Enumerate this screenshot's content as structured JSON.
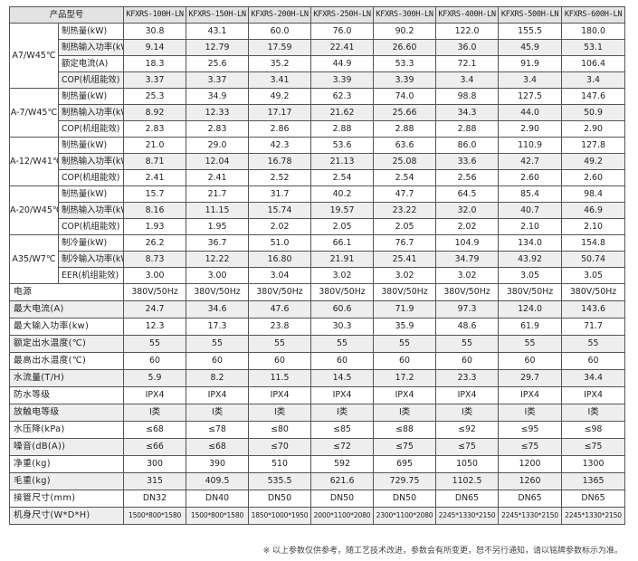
{
  "table": {
    "header_label": "产品型号",
    "models": [
      "KFXRS-100H-LN",
      "KFXRS-150H-LN",
      "KFXRS-200H-LN",
      "KFXRS-250H-LN",
      "KFXRS-300H-LN",
      "KFXRS-400H-LN",
      "KFXRS-500H-LN",
      "KFXRS-600H-LN"
    ],
    "groups": [
      {
        "label": "A7/W45℃",
        "rows": [
          {
            "param": "制热量(kW)",
            "values": [
              "30.8",
              "43.1",
              "60.0",
              "76.0",
              "90.2",
              "122.0",
              "155.5",
              "180.0"
            ]
          },
          {
            "param": "制热输入功率(kW)",
            "values": [
              "9.14",
              "12.79",
              "17.59",
              "22.41",
              "26.60",
              "36.0",
              "45.9",
              "53.1"
            ]
          },
          {
            "param": "额定电流(A)",
            "values": [
              "18.3",
              "25.6",
              "35.2",
              "44.9",
              "53.3",
              "72.1",
              "91.9",
              "106.4"
            ]
          },
          {
            "param": "COP(机组能效)",
            "values": [
              "3.37",
              "3.37",
              "3.41",
              "3.39",
              "3.39",
              "3.4",
              "3.4",
              "3.4"
            ]
          }
        ]
      },
      {
        "label": "A-7/W45℃",
        "rows": [
          {
            "param": "制热量(kW)",
            "values": [
              "25.3",
              "34.9",
              "49.2",
              "62.3",
              "74.0",
              "98.8",
              "127.5",
              "147.6"
            ]
          },
          {
            "param": "制热输入功率(kW)",
            "values": [
              "8.92",
              "12.33",
              "17.17",
              "21.62",
              "25.66",
              "34.3",
              "44.0",
              "50.9"
            ]
          },
          {
            "param": "COP(机组能效)",
            "values": [
              "2.83",
              "2.83",
              "2.86",
              "2.88",
              "2.88",
              "2.88",
              "2.90",
              "2.90"
            ]
          }
        ]
      },
      {
        "label": "A-12/W41℃",
        "rows": [
          {
            "param": "制热量(kW)",
            "values": [
              "21.0",
              "29.0",
              "42.3",
              "53.6",
              "63.6",
              "86.0",
              "110.9",
              "127.8"
            ]
          },
          {
            "param": "制热输入功率(kW)",
            "values": [
              "8.71",
              "12.04",
              "16.78",
              "21.13",
              "25.08",
              "33.6",
              "42.7",
              "49.2"
            ]
          },
          {
            "param": "COP(机组能效)",
            "values": [
              "2.41",
              "2.41",
              "2.52",
              "2.54",
              "2.54",
              "2.56",
              "2.60",
              "2.60"
            ]
          }
        ]
      },
      {
        "label": "A-20/W45℃",
        "rows": [
          {
            "param": "制热量(kW)",
            "values": [
              "15.7",
              "21.7",
              "31.7",
              "40.2",
              "47.7",
              "64.5",
              "85.4",
              "98.4"
            ]
          },
          {
            "param": "制热输入功率(kW)",
            "values": [
              "8.16",
              "11.15",
              "15.74",
              "19.57",
              "23.22",
              "32.0",
              "40.7",
              "46.9"
            ]
          },
          {
            "param": "COP(机组能效)",
            "values": [
              "1.93",
              "1.95",
              "2.02",
              "2.05",
              "2.05",
              "2.02",
              "2.10",
              "2.10"
            ]
          }
        ]
      },
      {
        "label": "A35/W7℃",
        "rows": [
          {
            "param": "制冷量(kW)",
            "values": [
              "26.2",
              "36.7",
              "51.0",
              "66.1",
              "76.7",
              "104.9",
              "134.0",
              "154.8"
            ]
          },
          {
            "param": "制冷输入功率(kW)",
            "values": [
              "8.73",
              "12.22",
              "16.80",
              "21.91",
              "25.41",
              "34.79",
              "43.92",
              "50.74"
            ]
          },
          {
            "param": "EER(机组能效)",
            "values": [
              "3.00",
              "3.00",
              "3.04",
              "3.02",
              "3.02",
              "3.02",
              "3.05",
              "3.05"
            ]
          }
        ]
      }
    ],
    "main_rows": [
      {
        "label": "电源",
        "values": [
          "380V/50Hz",
          "380V/50Hz",
          "380V/50Hz",
          "380V/50Hz",
          "380V/50Hz",
          "380V/50Hz",
          "380V/50Hz",
          "380V/50Hz"
        ]
      },
      {
        "label": "最大电流(A)",
        "values": [
          "24.7",
          "34.6",
          "47.6",
          "60.6",
          "71.9",
          "97.3",
          "124.0",
          "143.6"
        ]
      },
      {
        "label": "最大输入功率(kw)",
        "values": [
          "12.3",
          "17.3",
          "23.8",
          "30.3",
          "35.9",
          "48.6",
          "61.9",
          "71.7"
        ]
      },
      {
        "label": "额定出水温度(℃)",
        "values": [
          "55",
          "55",
          "55",
          "55",
          "55",
          "55",
          "55",
          "55"
        ]
      },
      {
        "label": "最高出水温度(℃)",
        "values": [
          "60",
          "60",
          "60",
          "60",
          "60",
          "60",
          "60",
          "60"
        ]
      },
      {
        "label": "水流量(T/H)",
        "values": [
          "5.9",
          "8.2",
          "11.5",
          "14.5",
          "17.2",
          "23.3",
          "29.7",
          "34.4"
        ]
      },
      {
        "label": "防水等级",
        "values": [
          "IPX4",
          "IPX4",
          "IPX4",
          "IPX4",
          "IPX4",
          "IPX4",
          "IPX4",
          "IPX4"
        ]
      },
      {
        "label": "放触电等级",
        "values": [
          "I类",
          "I类",
          "I类",
          "I类",
          "I类",
          "I类",
          "I类",
          "I类"
        ]
      },
      {
        "label": "水压降(kPa)",
        "values": [
          "≤68",
          "≤78",
          "≤80",
          "≤85",
          "≤88",
          "≤92",
          "≤95",
          "≤98"
        ]
      },
      {
        "label": "噪音(dB(A))",
        "values": [
          "≤66",
          "≤68",
          "≤70",
          "≤72",
          "≤75",
          "≤75",
          "≤75",
          "≤75"
        ]
      },
      {
        "label": "净重(kg)",
        "values": [
          "300",
          "390",
          "510",
          "592",
          "695",
          "1050",
          "1200",
          "1300"
        ]
      },
      {
        "label": "毛重(kg)",
        "values": [
          "315",
          "409.5",
          "535.5",
          "621.6",
          "729.75",
          "1102.5",
          "1260",
          "1365"
        ]
      },
      {
        "label": "接管尺寸(mm)",
        "values": [
          "DN32",
          "DN40",
          "DN50",
          "DN50",
          "DN50",
          "DN65",
          "DN65",
          "DN65"
        ]
      },
      {
        "label": "机身尺寸(W*D*H)",
        "values": [
          "1500*800*1580",
          "1500*800*1580",
          "1850*1000*1950",
          "2000*1100*2080",
          "2300*1100*2080",
          "2245*1330*2150",
          "2245*1330*2150",
          "2245*1330*2150"
        ]
      }
    ]
  },
  "footnote": "※ 以上参数仅供参考，随工艺技术改进，参数会有所变更，恕不另行通知，请以铭牌参数标示为准。"
}
